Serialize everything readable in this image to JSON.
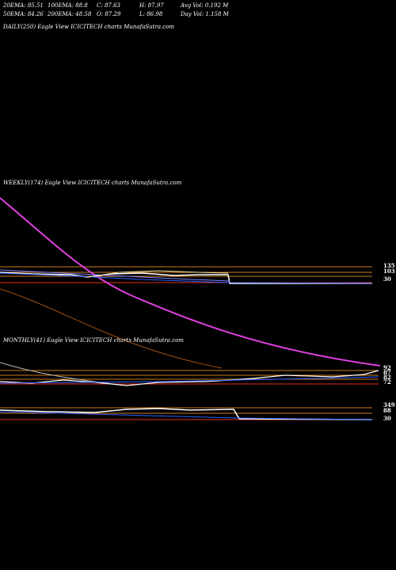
{
  "header": {
    "row1": [
      "20EMA: 85.51",
      "100EMA: 88.8",
      "C: 87.63",
      "H: 87.97",
      "Avg Vol: 0.192  M"
    ],
    "row2": [
      "50EMA: 84.26",
      "200EMA: 48.58",
      "O: 87.29",
      "L: 86.98",
      "Day Vol: 1.158  M"
    ]
  },
  "panels": [
    {
      "label": "DAILY(250) Eagle  View  ICICITECH charts MunafaSutra.com",
      "price_labels": []
    },
    {
      "label": "WEEKLY(174) Eagle  View  ICICITECH charts MunafaSutra.com",
      "price_labels": [
        "135",
        "103",
        "30"
      ]
    },
    {
      "label": "MONTHLY(41) Eagle  View  ICICITECH charts MunafaSutra.com",
      "price_labels": [
        "92",
        "87",
        "82",
        "72"
      ]
    },
    {
      "label": "",
      "price_labels": [
        "349",
        "88",
        "30"
      ]
    }
  ]
}
